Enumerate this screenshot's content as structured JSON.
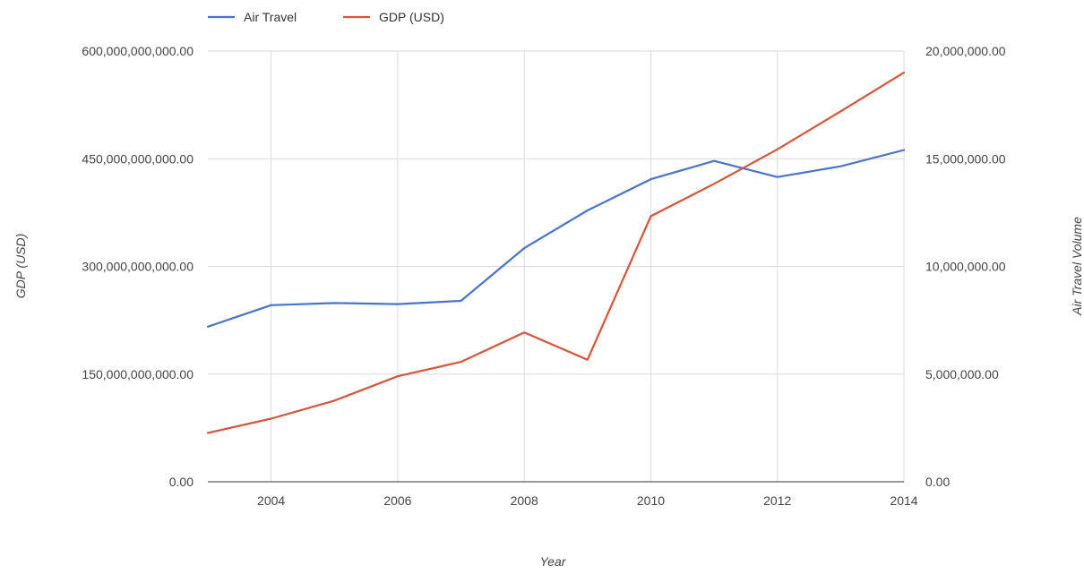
{
  "chart_data": {
    "type": "line",
    "xlabel": "Year",
    "ylabel_left": "GDP (USD)",
    "ylabel_right": "Air Travel Volume",
    "xlim": [
      2003,
      2014
    ],
    "x_ticks": [
      2004,
      2006,
      2008,
      2010,
      2012,
      2014
    ],
    "x_tick_labels": [
      "2004",
      "2006",
      "2008",
      "2010",
      "2012",
      "2014"
    ],
    "ylim_left": [
      0,
      600000000000
    ],
    "ylim_right": [
      0,
      20000000
    ],
    "y_ticks_left": [
      0,
      150000000000,
      300000000000,
      450000000000,
      600000000000
    ],
    "y_tick_labels_left": [
      "0.00",
      "150,000,000,000.00",
      "300,000,000,000.00",
      "450,000,000,000.00",
      "600,000,000,000.00"
    ],
    "y_ticks_right": [
      0,
      5000000,
      10000000,
      15000000,
      20000000
    ],
    "y_tick_labels_right": [
      "0.00",
      "5,000,000.00",
      "10,000,000.00",
      "15,000,000.00",
      "20,000,000.00"
    ],
    "grid": true,
    "legend_position": "top-left",
    "series": [
      {
        "name": "Air Travel",
        "axis": "right",
        "color": "#4a74c9",
        "x": [
          2003,
          2004,
          2005,
          2006,
          2007,
          2008,
          2009,
          2010,
          2011,
          2012,
          2013,
          2014
        ],
        "values": [
          7200000,
          8200000,
          8300000,
          8250000,
          8400000,
          10850000,
          12600000,
          14050000,
          14900000,
          14150000,
          14650000,
          15400000
        ]
      },
      {
        "name": "GDP (USD)",
        "axis": "left",
        "color": "#d5553a",
        "x": [
          2003,
          2004,
          2005,
          2006,
          2007,
          2008,
          2009,
          2010,
          2011,
          2012,
          2013,
          2014
        ],
        "values": [
          68000000000,
          88000000000,
          113000000000,
          147000000000,
          167000000000,
          208000000000,
          170000000000,
          370000000000,
          415000000000,
          463000000000,
          516000000000,
          570000000000
        ]
      }
    ]
  }
}
